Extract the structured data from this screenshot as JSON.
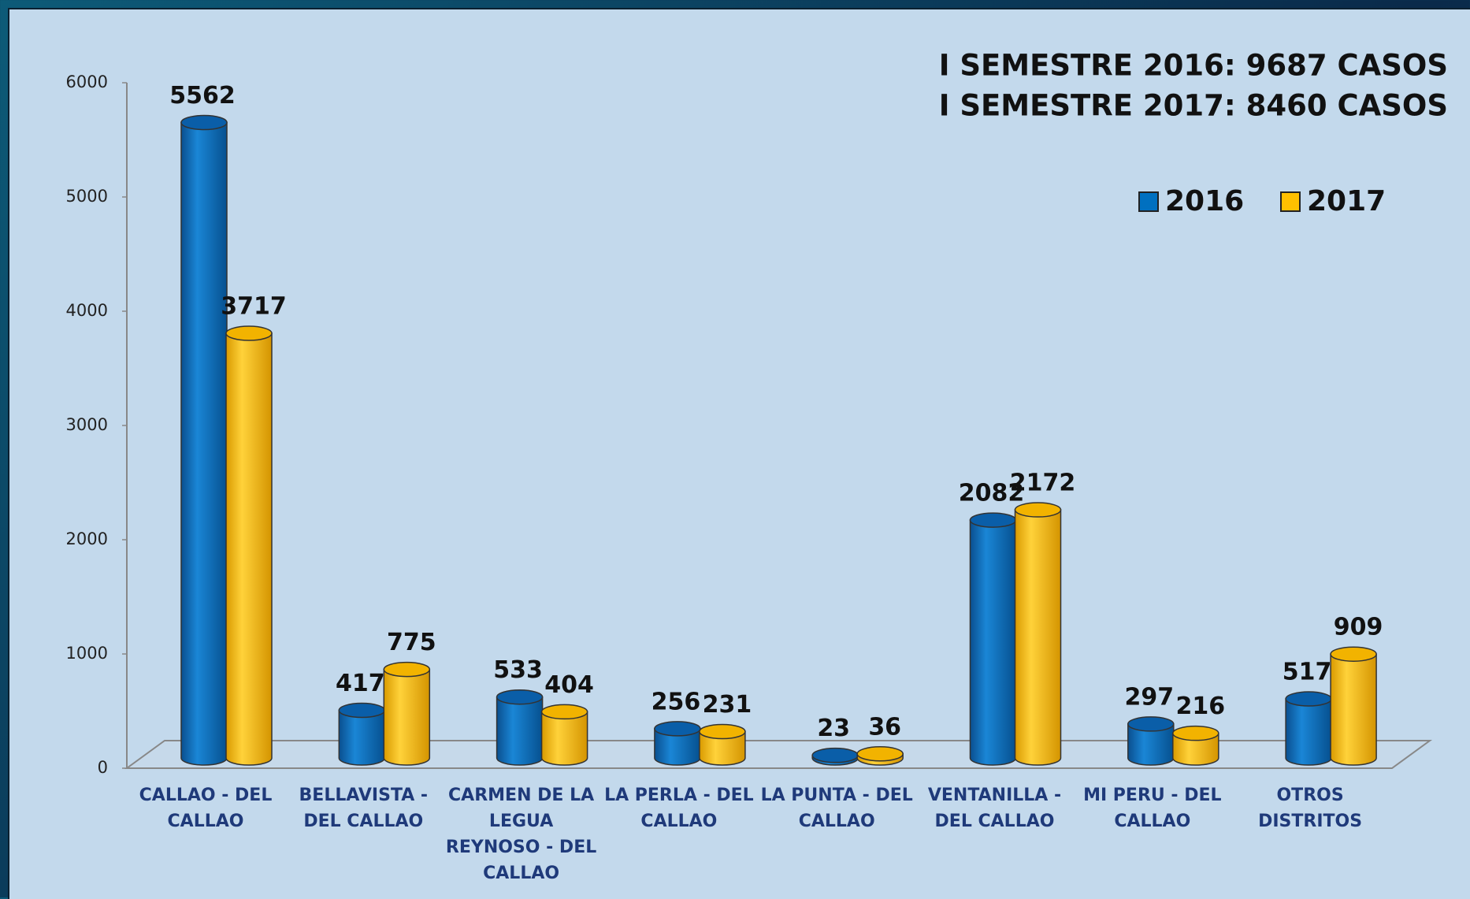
{
  "chart_data": {
    "type": "bar",
    "annotations": [
      "I SEMESTRE 2016: 9687  CASOS",
      "I SEMESTRE 2017: 8460  CASOS"
    ],
    "categories": [
      "CALLAO - DEL CALLAO",
      "BELLAVISTA - DEL CALLAO",
      "CARMEN DE LA LEGUA REYNOSO - DEL CALLAO",
      "LA PERLA - DEL CALLAO",
      "LA PUNTA - DEL CALLAO",
      "VENTANILLA - DEL CALLAO",
      "MI PERU - DEL CALLAO",
      "OTROS DISTRITOS"
    ],
    "series": [
      {
        "name": "2016",
        "color": "#0070c0",
        "values": [
          5562,
          417,
          533,
          256,
          23,
          2082,
          297,
          517
        ]
      },
      {
        "name": "2017",
        "color": "#ffc000",
        "values": [
          3717,
          775,
          404,
          231,
          36,
          2172,
          216,
          909
        ]
      }
    ],
    "ylim": [
      0,
      6000
    ],
    "yticks": [
      0,
      1000,
      2000,
      3000,
      4000,
      5000,
      6000
    ],
    "legend": "top-right"
  }
}
